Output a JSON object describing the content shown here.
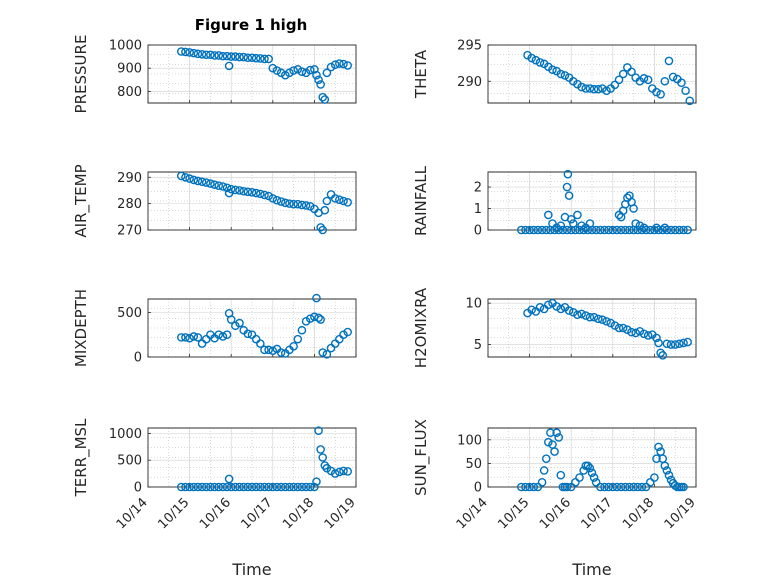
{
  "figure": {
    "title": "Figure 1 high",
    "marker_color": "#0072BD"
  },
  "chart_data": [
    {
      "type": "scatter",
      "ylabel": "PRESSURE",
      "xlabel": "",
      "ylim": [
        750,
        1000
      ],
      "yticks": [
        {
          "v": 800,
          "label": "800"
        },
        {
          "v": 900,
          "label": "900"
        },
        {
          "v": 1000,
          "label": "1000"
        }
      ],
      "xlim": [
        14,
        19
      ],
      "x": [
        14.8,
        14.9,
        15.0,
        15.1,
        15.2,
        15.3,
        15.4,
        15.5,
        15.6,
        15.7,
        15.8,
        15.9,
        16.0,
        16.1,
        16.2,
        16.3,
        16.4,
        16.5,
        16.6,
        16.7,
        16.8,
        16.9,
        17.0,
        17.1,
        17.2,
        17.3,
        17.4,
        17.5,
        17.6,
        17.7,
        17.8,
        17.9,
        18.0,
        18.05,
        18.1,
        18.15,
        18.2,
        18.25,
        18.3,
        18.4,
        18.5,
        18.6,
        18.7,
        18.8,
        15.95
      ],
      "y": [
        972,
        970,
        968,
        965,
        962,
        960,
        958,
        958,
        955,
        955,
        952,
        952,
        950,
        950,
        948,
        948,
        945,
        945,
        943,
        942,
        940,
        940,
        900,
        890,
        880,
        870,
        880,
        890,
        895,
        885,
        880,
        892,
        895,
        870,
        850,
        830,
        775,
        765,
        880,
        905,
        915,
        920,
        918,
        912,
        910
      ]
    },
    {
      "type": "scatter",
      "ylabel": "THETA",
      "xlabel": "",
      "ylim": [
        287,
        295
      ],
      "yticks": [
        {
          "v": 290,
          "label": "290"
        },
        {
          "v": 295,
          "label": "295"
        }
      ],
      "xlim": [
        14,
        19
      ],
      "x": [
        14.95,
        15.05,
        15.15,
        15.25,
        15.35,
        15.45,
        15.55,
        15.65,
        15.75,
        15.85,
        15.95,
        16.05,
        16.15,
        16.25,
        16.35,
        16.45,
        16.55,
        16.65,
        16.75,
        16.85,
        16.95,
        17.05,
        17.15,
        17.25,
        17.35,
        17.45,
        17.55,
        17.65,
        17.75,
        17.85,
        17.95,
        18.05,
        18.15,
        18.25,
        18.35,
        18.45,
        18.55,
        18.65,
        18.75,
        18.85
      ],
      "y": [
        293.6,
        293.2,
        292.9,
        292.6,
        292.4,
        292.0,
        291.6,
        291.4,
        291.0,
        290.8,
        290.5,
        290.0,
        289.6,
        289.2,
        289.0,
        289.0,
        288.9,
        288.9,
        289.0,
        288.7,
        289.0,
        289.5,
        290.2,
        291.0,
        291.9,
        291.3,
        290.5,
        290.0,
        290.4,
        290.2,
        289.0,
        288.5,
        288.2,
        290.0,
        292.8,
        290.6,
        290.3,
        289.8,
        288.7,
        287.3
      ]
    },
    {
      "type": "scatter",
      "ylabel": "AIR_TEMP",
      "xlabel": "",
      "ylim": [
        270,
        292
      ],
      "yticks": [
        {
          "v": 270,
          "label": "270"
        },
        {
          "v": 280,
          "label": "280"
        },
        {
          "v": 290,
          "label": "290"
        }
      ],
      "xlim": [
        14,
        19
      ],
      "x": [
        14.8,
        14.9,
        15.0,
        15.1,
        15.2,
        15.3,
        15.4,
        15.5,
        15.6,
        15.7,
        15.8,
        15.9,
        16.0,
        16.1,
        16.2,
        16.3,
        16.4,
        16.5,
        16.6,
        16.7,
        16.8,
        16.9,
        17.0,
        17.1,
        17.2,
        17.3,
        17.4,
        17.5,
        17.6,
        17.7,
        17.8,
        17.9,
        18.0,
        18.1,
        18.15,
        18.2,
        18.25,
        18.3,
        18.4,
        18.5,
        18.6,
        18.7,
        18.8,
        15.95
      ],
      "y": [
        290.5,
        290.0,
        289.5,
        289.0,
        288.6,
        288.3,
        288.0,
        287.6,
        287.2,
        286.8,
        286.5,
        286.0,
        285.5,
        285.2,
        285.0,
        284.7,
        284.5,
        284.3,
        284.0,
        283.7,
        283.3,
        282.9,
        282.0,
        281.3,
        280.8,
        280.3,
        280.0,
        279.8,
        279.8,
        279.5,
        279.3,
        279.0,
        278.0,
        276.5,
        271.0,
        270.0,
        277.5,
        281.0,
        283.5,
        282.0,
        281.5,
        281.0,
        280.5,
        284.0
      ]
    },
    {
      "type": "scatter",
      "ylabel": "RAINFALL",
      "xlabel": "",
      "ylim": [
        0,
        2.7
      ],
      "yticks": [
        {
          "v": 0,
          "label": "0"
        },
        {
          "v": 1,
          "label": "1"
        },
        {
          "v": 2,
          "label": "2"
        }
      ],
      "xlim": [
        14,
        19
      ],
      "x": [
        14.8,
        14.9,
        15.0,
        15.1,
        15.2,
        15.3,
        15.4,
        15.5,
        15.6,
        15.7,
        15.8,
        15.9,
        16.0,
        16.1,
        16.2,
        16.3,
        16.4,
        16.5,
        16.6,
        16.7,
        16.8,
        16.9,
        17.0,
        17.1,
        17.2,
        17.3,
        17.4,
        17.5,
        17.6,
        17.7,
        17.8,
        17.9,
        18.0,
        18.1,
        18.2,
        18.3,
        18.4,
        18.5,
        18.6,
        18.7,
        18.8,
        15.45,
        15.55,
        15.65,
        15.75,
        15.85,
        15.9,
        15.92,
        15.95,
        16.0,
        16.05,
        16.15,
        16.25,
        16.35,
        16.45,
        17.15,
        17.2,
        17.25,
        17.3,
        17.35,
        17.4,
        17.45,
        17.5,
        17.55,
        17.65,
        17.75,
        18.05,
        18.25
      ],
      "y": [
        0,
        0,
        0,
        0,
        0,
        0,
        0,
        0,
        0,
        0,
        0,
        0,
        0,
        0,
        0,
        0,
        0,
        0,
        0,
        0,
        0,
        0,
        0,
        0,
        0,
        0,
        0,
        0,
        0,
        0,
        0,
        0,
        0,
        0,
        0,
        0,
        0,
        0,
        0,
        0,
        0,
        0.7,
        0.3,
        0.1,
        0.2,
        0.6,
        2.0,
        2.6,
        1.6,
        0.5,
        0.3,
        0.7,
        0.2,
        0.1,
        0.3,
        0.7,
        0.6,
        0.9,
        1.2,
        1.5,
        1.6,
        1.3,
        1.0,
        0.3,
        0.2,
        0.1,
        0.1,
        0.1
      ]
    },
    {
      "type": "scatter",
      "ylabel": "MIXDEPTH",
      "xlabel": "",
      "ylim": [
        0,
        650
      ],
      "yticks": [
        {
          "v": 0,
          "label": "0"
        },
        {
          "v": 500,
          "label": "500"
        }
      ],
      "xlim": [
        14,
        19
      ],
      "x": [
        14.8,
        14.9,
        15.0,
        15.1,
        15.2,
        15.3,
        15.4,
        15.5,
        15.6,
        15.7,
        15.8,
        15.9,
        15.95,
        16.0,
        16.1,
        16.2,
        16.3,
        16.4,
        16.5,
        16.6,
        16.7,
        16.8,
        16.9,
        17.0,
        17.1,
        17.2,
        17.3,
        17.4,
        17.5,
        17.6,
        17.7,
        17.8,
        17.9,
        18.0,
        18.05,
        18.1,
        18.15,
        18.2,
        18.3,
        18.4,
        18.5,
        18.6,
        18.7,
        18.8
      ],
      "y": [
        220,
        220,
        210,
        230,
        220,
        150,
        200,
        250,
        210,
        250,
        230,
        250,
        490,
        420,
        350,
        380,
        300,
        260,
        250,
        200,
        150,
        80,
        80,
        70,
        90,
        50,
        40,
        80,
        120,
        200,
        300,
        400,
        430,
        450,
        660,
        440,
        420,
        50,
        30,
        100,
        150,
        200,
        250,
        280
      ]
    },
    {
      "type": "scatter",
      "ylabel": "H2OMIXRA",
      "xlabel": "",
      "ylim": [
        3.5,
        10.5
      ],
      "yticks": [
        {
          "v": 5,
          "label": "5"
        },
        {
          "v": 10,
          "label": "10"
        }
      ],
      "xlim": [
        14,
        19
      ],
      "x": [
        14.95,
        15.05,
        15.15,
        15.25,
        15.35,
        15.45,
        15.55,
        15.65,
        15.75,
        15.85,
        15.95,
        16.05,
        16.15,
        16.25,
        16.35,
        16.45,
        16.55,
        16.65,
        16.75,
        16.85,
        16.95,
        17.05,
        17.15,
        17.25,
        17.35,
        17.45,
        17.55,
        17.65,
        17.75,
        17.85,
        17.95,
        18.05,
        18.1,
        18.15,
        18.2,
        18.3,
        18.4,
        18.5,
        18.6,
        18.7,
        18.8
      ],
      "y": [
        8.8,
        9.2,
        9.0,
        9.5,
        9.3,
        9.8,
        10.0,
        9.6,
        9.3,
        9.5,
        9.1,
        8.9,
        8.6,
        8.7,
        8.5,
        8.3,
        8.3,
        8.1,
        8.0,
        7.8,
        7.6,
        7.3,
        7.0,
        7.0,
        6.8,
        6.5,
        6.4,
        6.6,
        6.3,
        6.1,
        6.2,
        5.8,
        5.2,
        4.0,
        3.7,
        5.1,
        5.0,
        5.0,
        5.1,
        5.2,
        5.3
      ]
    },
    {
      "type": "scatter",
      "ylabel": "TERR_MSL",
      "xlabel": "Time",
      "ylim": [
        0,
        1100
      ],
      "yticks": [
        {
          "v": 0,
          "label": "0"
        },
        {
          "v": 500,
          "label": "500"
        },
        {
          "v": 1000,
          "label": "1000"
        }
      ],
      "xlim": [
        14,
        19
      ],
      "xticks": [
        {
          "v": 14,
          "label": "10/14"
        },
        {
          "v": 15,
          "label": "10/15"
        },
        {
          "v": 16,
          "label": "10/16"
        },
        {
          "v": 17,
          "label": "10/17"
        },
        {
          "v": 18,
          "label": "10/18"
        },
        {
          "v": 19,
          "label": "10/19"
        }
      ],
      "x": [
        14.8,
        14.9,
        15.0,
        15.1,
        15.2,
        15.3,
        15.4,
        15.5,
        15.6,
        15.7,
        15.8,
        15.9,
        16.0,
        16.1,
        16.2,
        16.3,
        16.4,
        16.5,
        16.6,
        16.7,
        16.8,
        16.9,
        17.0,
        17.1,
        17.2,
        17.3,
        17.4,
        17.5,
        17.6,
        17.7,
        17.8,
        17.9,
        18.0,
        15.95,
        18.05,
        18.1,
        18.15,
        18.2,
        18.25,
        18.3,
        18.4,
        18.5,
        18.6,
        18.7,
        18.8
      ],
      "y": [
        0,
        0,
        0,
        0,
        0,
        0,
        0,
        0,
        0,
        0,
        0,
        0,
        0,
        0,
        0,
        0,
        0,
        0,
        0,
        0,
        0,
        0,
        0,
        0,
        0,
        0,
        0,
        0,
        0,
        0,
        0,
        0,
        0,
        150,
        100,
        1050,
        700,
        550,
        400,
        350,
        300,
        250,
        280,
        300,
        290
      ]
    },
    {
      "type": "scatter",
      "ylabel": "SUN_FLUX",
      "xlabel": "Time",
      "ylim": [
        0,
        125
      ],
      "yticks": [
        {
          "v": 0,
          "label": "0"
        },
        {
          "v": 50,
          "label": "50"
        },
        {
          "v": 100,
          "label": "100"
        }
      ],
      "xlim": [
        14,
        19
      ],
      "xticks": [
        {
          "v": 14,
          "label": "10/14"
        },
        {
          "v": 15,
          "label": "10/15"
        },
        {
          "v": 16,
          "label": "10/16"
        },
        {
          "v": 17,
          "label": "10/17"
        },
        {
          "v": 18,
          "label": "10/18"
        },
        {
          "v": 19,
          "label": "10/19"
        }
      ],
      "x": [
        14.8,
        14.9,
        15.0,
        15.1,
        15.2,
        15.3,
        15.35,
        15.4,
        15.45,
        15.5,
        15.55,
        15.6,
        15.65,
        15.7,
        15.75,
        15.8,
        15.85,
        15.9,
        16.0,
        16.1,
        16.2,
        16.3,
        16.35,
        16.4,
        16.45,
        16.5,
        16.55,
        16.6,
        16.7,
        16.8,
        16.9,
        17.0,
        17.1,
        17.2,
        17.3,
        17.4,
        17.5,
        17.6,
        17.7,
        17.8,
        17.9,
        18.0,
        18.05,
        18.1,
        18.15,
        18.2,
        18.25,
        18.3,
        18.35,
        18.4,
        18.45,
        18.5,
        18.55,
        18.6,
        18.65,
        18.7
      ],
      "y": [
        0,
        0,
        0,
        0,
        0,
        10,
        35,
        60,
        95,
        115,
        90,
        75,
        115,
        105,
        25,
        0,
        0,
        0,
        0,
        10,
        20,
        35,
        45,
        45,
        40,
        30,
        20,
        10,
        0,
        0,
        0,
        0,
        0,
        0,
        0,
        0,
        0,
        0,
        0,
        0,
        10,
        20,
        60,
        85,
        75,
        60,
        45,
        35,
        25,
        15,
        8,
        3,
        0,
        0,
        0,
        0
      ]
    }
  ]
}
